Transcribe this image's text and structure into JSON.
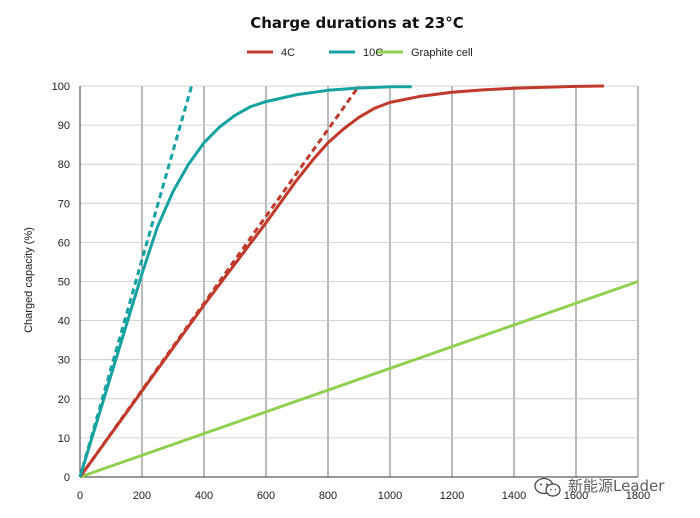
{
  "chart_data": {
    "type": "line",
    "title": "Charge durations at 23°C",
    "xlabel": "",
    "ylabel": "Charged capacity (%)",
    "xlim": [
      0,
      1800
    ],
    "ylim": [
      0,
      100
    ],
    "x_ticks": [
      0,
      200,
      400,
      600,
      800,
      1000,
      1200,
      1400,
      1600,
      1800
    ],
    "y_ticks": [
      0,
      10,
      20,
      30,
      40,
      50,
      60,
      70,
      80,
      90,
      100
    ],
    "legend_position": "top-center",
    "grid": true,
    "series": [
      {
        "name": "4C",
        "color": "#c0392b",
        "style": "solid",
        "x": [
          0,
          100,
          200,
          300,
          400,
          500,
          600,
          700,
          750,
          800,
          850,
          900,
          950,
          1000,
          1100,
          1200,
          1300,
          1400,
          1500,
          1600,
          1690
        ],
        "y": [
          0,
          11,
          22,
          33,
          44,
          54.5,
          65,
          76,
          81,
          85.5,
          89,
          92,
          94.3,
          95.8,
          97.4,
          98.4,
          99,
          99.4,
          99.7,
          99.9,
          100
        ]
      },
      {
        "name": "4C trend",
        "color": "#c0392b",
        "style": "dashed",
        "legend": false,
        "x": [
          0,
          900
        ],
        "y": [
          0,
          100
        ]
      },
      {
        "name": "10C",
        "color": "#17a2a2",
        "style": "solid",
        "x": [
          0,
          50,
          100,
          150,
          200,
          250,
          300,
          350,
          400,
          450,
          500,
          550,
          600,
          700,
          800,
          900,
          1000,
          1070
        ],
        "y": [
          0,
          13,
          26,
          39,
          52,
          64,
          73,
          80,
          85.5,
          89.5,
          92.5,
          94.7,
          96,
          97.8,
          98.9,
          99.5,
          99.8,
          99.8
        ]
      },
      {
        "name": "10C trend",
        "color": "#17a2a2",
        "style": "dashed",
        "legend": false,
        "x": [
          0,
          360
        ],
        "y": [
          0,
          100
        ]
      },
      {
        "name": "Graphite cell",
        "color": "#8fd14f",
        "style": "solid",
        "x": [
          0,
          1800
        ],
        "y": [
          0,
          50
        ]
      }
    ]
  },
  "watermark": {
    "icon": "wechat-icon",
    "text": "新能源Leader"
  }
}
